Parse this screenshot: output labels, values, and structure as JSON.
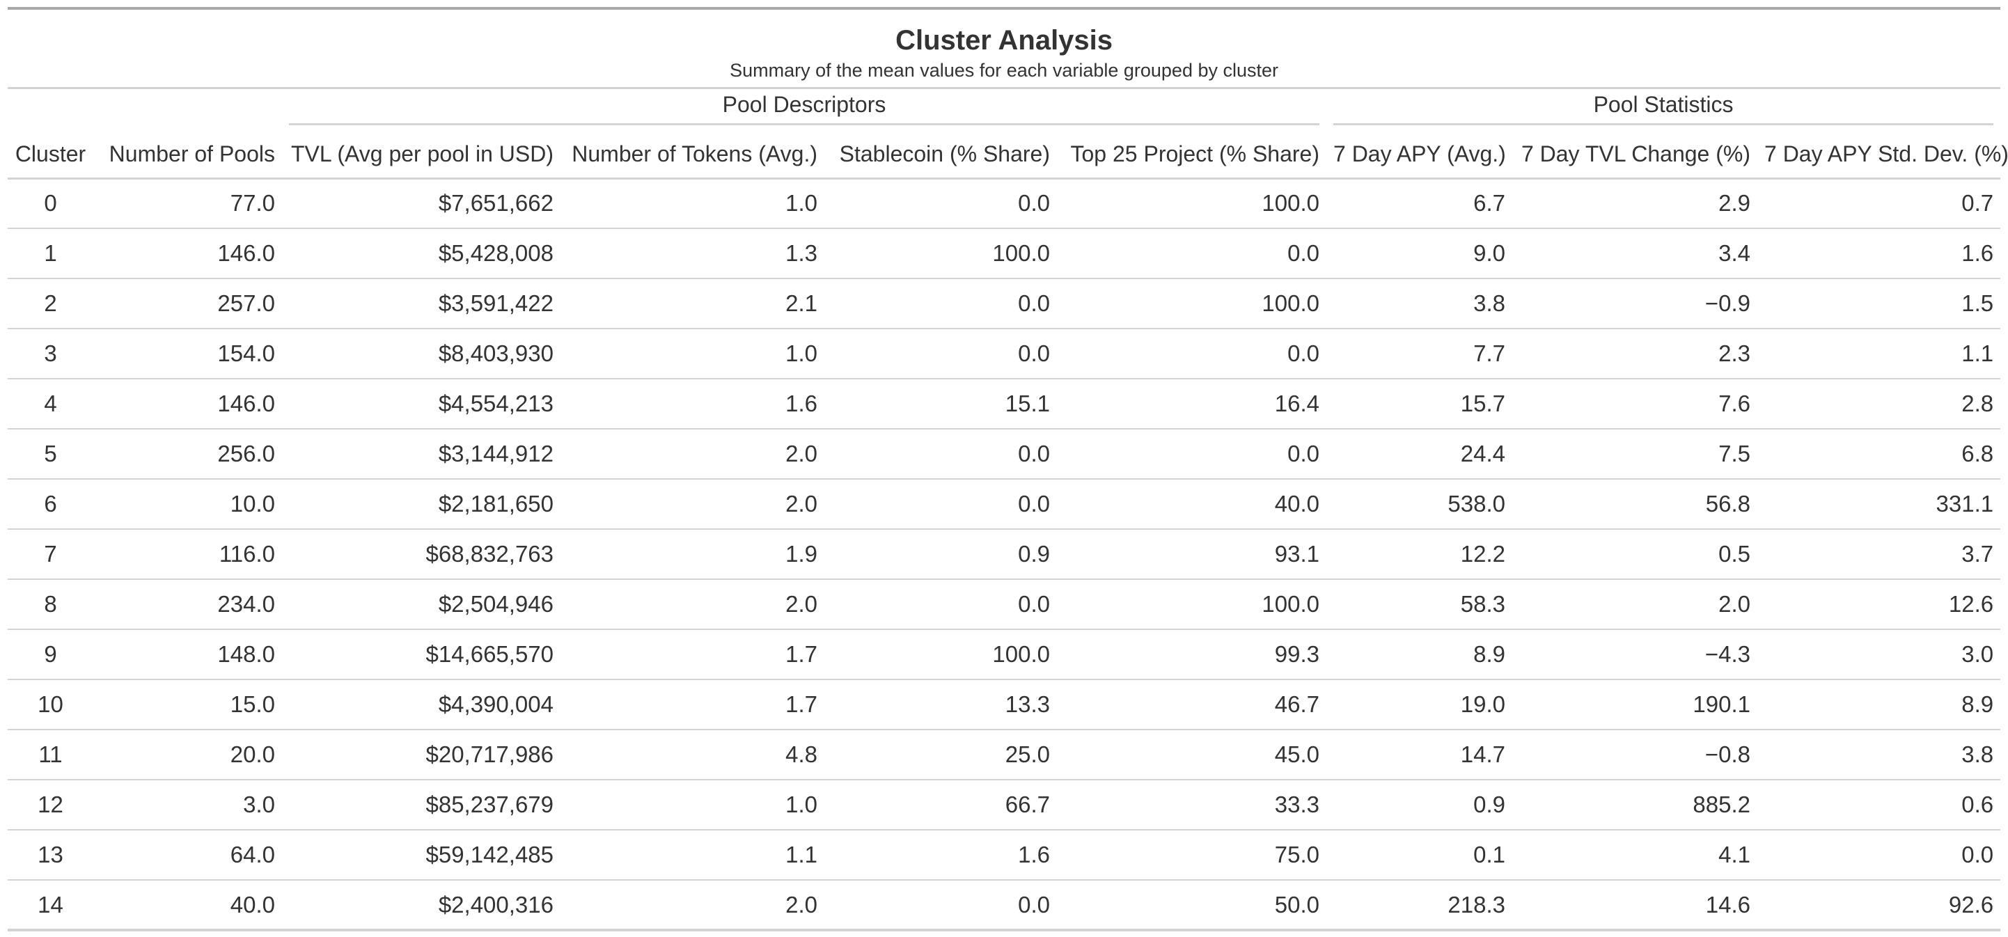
{
  "title": "Cluster Analysis",
  "subtitle": "Summary of the mean values for each variable grouped by cluster",
  "spanners": {
    "pool_descriptors": "Pool Descriptors",
    "pool_statistics": "Pool Statistics"
  },
  "columns": {
    "cluster": "Cluster",
    "num_pools": "Number of Pools",
    "tvl": "TVL (Avg per pool in USD)",
    "num_tokens": "Number of Tokens (Avg.)",
    "stablecoin": "Stablecoin (% Share)",
    "top25": "Top 25 Project (% Share)",
    "apy": "7 Day APY (Avg.)",
    "tvl_change": "7 Day TVL Change (%)",
    "apy_std": "7 Day APY Std. Dev. (%)"
  },
  "rows": [
    [
      "0",
      "77.0",
      "$7,651,662",
      "1.0",
      "0.0",
      "100.0",
      "6.7",
      "2.9",
      "0.7"
    ],
    [
      "1",
      "146.0",
      "$5,428,008",
      "1.3",
      "100.0",
      "0.0",
      "9.0",
      "3.4",
      "1.6"
    ],
    [
      "2",
      "257.0",
      "$3,591,422",
      "2.1",
      "0.0",
      "100.0",
      "3.8",
      "−0.9",
      "1.5"
    ],
    [
      "3",
      "154.0",
      "$8,403,930",
      "1.0",
      "0.0",
      "0.0",
      "7.7",
      "2.3",
      "1.1"
    ],
    [
      "4",
      "146.0",
      "$4,554,213",
      "1.6",
      "15.1",
      "16.4",
      "15.7",
      "7.6",
      "2.8"
    ],
    [
      "5",
      "256.0",
      "$3,144,912",
      "2.0",
      "0.0",
      "0.0",
      "24.4",
      "7.5",
      "6.8"
    ],
    [
      "6",
      "10.0",
      "$2,181,650",
      "2.0",
      "0.0",
      "40.0",
      "538.0",
      "56.8",
      "331.1"
    ],
    [
      "7",
      "116.0",
      "$68,832,763",
      "1.9",
      "0.9",
      "93.1",
      "12.2",
      "0.5",
      "3.7"
    ],
    [
      "8",
      "234.0",
      "$2,504,946",
      "2.0",
      "0.0",
      "100.0",
      "58.3",
      "2.0",
      "12.6"
    ],
    [
      "9",
      "148.0",
      "$14,665,570",
      "1.7",
      "100.0",
      "99.3",
      "8.9",
      "−4.3",
      "3.0"
    ],
    [
      "10",
      "15.0",
      "$4,390,004",
      "1.7",
      "13.3",
      "46.7",
      "19.0",
      "190.1",
      "8.9"
    ],
    [
      "11",
      "20.0",
      "$20,717,986",
      "4.8",
      "25.0",
      "45.0",
      "14.7",
      "−0.8",
      "3.8"
    ],
    [
      "12",
      "3.0",
      "$85,237,679",
      "1.0",
      "66.7",
      "33.3",
      "0.9",
      "885.2",
      "0.6"
    ],
    [
      "13",
      "64.0",
      "$59,142,485",
      "1.1",
      "1.6",
      "75.0",
      "0.1",
      "4.1",
      "0.0"
    ],
    [
      "14",
      "40.0",
      "$2,400,316",
      "2.0",
      "0.0",
      "50.0",
      "218.3",
      "14.6",
      "92.6"
    ]
  ]
}
